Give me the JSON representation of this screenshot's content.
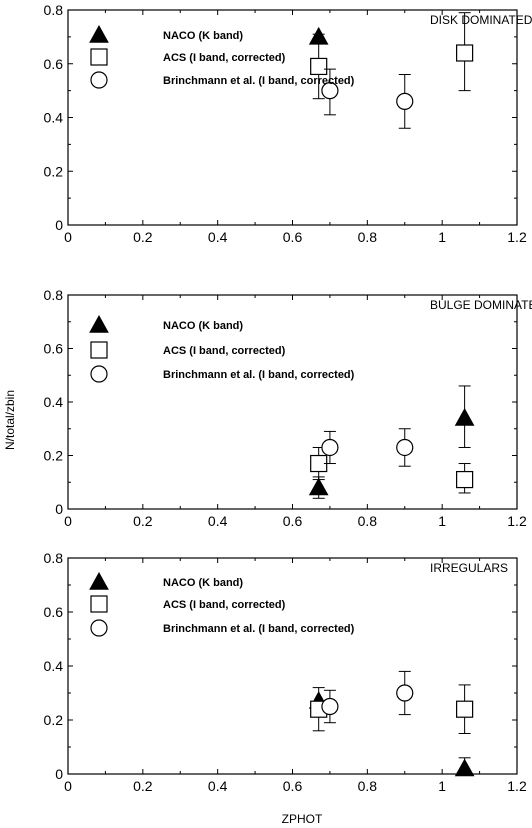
{
  "chart_data": {
    "type": "scatter",
    "xlabel": "ZPHOT",
    "ylabel": "N/total/zbin",
    "xlim": [
      0,
      1.2
    ],
    "ylim": [
      0,
      0.8
    ],
    "xticks": [
      "0",
      "0.2",
      "0.4",
      "0.6",
      "0.8",
      "1",
      "1.2"
    ],
    "yticks": [
      "0",
      "0.2",
      "0.4",
      "0.6",
      "0.8"
    ],
    "legend_placement": "top-left",
    "panels": [
      {
        "title": "DISK DOMINATED",
        "series": [
          {
            "name": "NACO (K band)",
            "marker": "filled-triangle",
            "points": [
              {
                "x": 0.67,
                "y": 0.7
              }
            ]
          },
          {
            "name": "ACS (I band, corrected)",
            "marker": "open-square",
            "points": [
              {
                "x": 0.67,
                "y": 0.59,
                "lo": 0.47,
                "hi": 0.71
              },
              {
                "x": 1.06,
                "y": 0.64,
                "lo": 0.5,
                "hi": 0.79
              }
            ]
          },
          {
            "name": "Brinchmann et al. (I band, corrected)",
            "marker": "open-circle",
            "points": [
              {
                "x": 0.7,
                "y": 0.5,
                "lo": 0.41,
                "hi": 0.58
              },
              {
                "x": 0.9,
                "y": 0.46,
                "lo": 0.36,
                "hi": 0.56
              }
            ]
          }
        ]
      },
      {
        "title": "BULGE DOMINATED",
        "series": [
          {
            "name": "NACO (K band)",
            "marker": "filled-triangle",
            "points": [
              {
                "x": 0.67,
                "y": 0.08,
                "lo": 0.04,
                "hi": 0.12
              },
              {
                "x": 1.06,
                "y": 0.34,
                "lo": 0.23,
                "hi": 0.46
              }
            ]
          },
          {
            "name": "ACS (I band, corrected)",
            "marker": "open-square",
            "points": [
              {
                "x": 0.67,
                "y": 0.17,
                "lo": 0.11,
                "hi": 0.23
              },
              {
                "x": 1.06,
                "y": 0.11,
                "lo": 0.06,
                "hi": 0.17
              }
            ]
          },
          {
            "name": "Brinchmann et al. (I band, corrected)",
            "marker": "open-circle",
            "points": [
              {
                "x": 0.7,
                "y": 0.23,
                "lo": 0.17,
                "hi": 0.29
              },
              {
                "x": 0.9,
                "y": 0.23,
                "lo": 0.16,
                "hi": 0.3
              }
            ]
          }
        ]
      },
      {
        "title": "IRREGULARS",
        "series": [
          {
            "name": "NACO (K band)",
            "marker": "filled-triangle",
            "points": [
              {
                "x": 0.67,
                "y": 0.27
              },
              {
                "x": 1.06,
                "y": 0.02,
                "lo": 0.0,
                "hi": 0.06
              }
            ]
          },
          {
            "name": "ACS (I band, corrected)",
            "marker": "open-square",
            "points": [
              {
                "x": 0.67,
                "y": 0.24,
                "lo": 0.16,
                "hi": 0.32
              },
              {
                "x": 1.06,
                "y": 0.24,
                "lo": 0.15,
                "hi": 0.33
              }
            ]
          },
          {
            "name": "Brinchmann et al. (I band, corrected)",
            "marker": "open-circle",
            "points": [
              {
                "x": 0.7,
                "y": 0.25,
                "lo": 0.19,
                "hi": 0.31
              },
              {
                "x": 0.9,
                "y": 0.3,
                "lo": 0.22,
                "hi": 0.38
              }
            ]
          }
        ]
      }
    ]
  }
}
